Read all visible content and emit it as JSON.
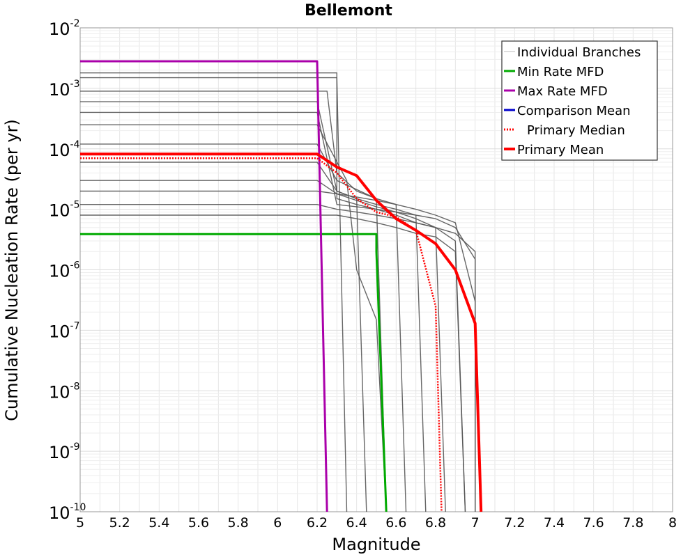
{
  "chart_data": {
    "type": "line",
    "title": "Bellemont",
    "xlabel": "Magnitude",
    "ylabel": "Cumulative Nucleation Rate (per yr)",
    "xlim": [
      5,
      8
    ],
    "ylim": [
      1e-10,
      0.01
    ],
    "yscale": "log",
    "grid": true,
    "legend_position": "top-right",
    "x_ticks": [
      "5",
      "5.2",
      "5.4",
      "5.6",
      "5.8",
      "6",
      "6.2",
      "6.4",
      "6.6",
      "6.8",
      "7",
      "7.2",
      "7.4",
      "7.6",
      "7.8",
      "8"
    ],
    "y_ticks": [
      {
        "base": "10",
        "exp": "-2"
      },
      {
        "base": "10",
        "exp": "-3"
      },
      {
        "base": "10",
        "exp": "-4"
      },
      {
        "base": "10",
        "exp": "-5"
      },
      {
        "base": "10",
        "exp": "-6"
      },
      {
        "base": "10",
        "exp": "-7"
      },
      {
        "base": "10",
        "exp": "-8"
      },
      {
        "base": "10",
        "exp": "-9"
      },
      {
        "base": "10",
        "exp": "-10"
      }
    ],
    "series": [
      {
        "name": "Individual Branches",
        "color": "#555555",
        "style": "thin",
        "note_count_visible": "many",
        "samples": [
          {
            "x": [
              5,
              6.3,
              6.3,
              6.4,
              6.5,
              6.6,
              6.7,
              6.8,
              6.9,
              6.95
            ],
            "y": [
              0.0018,
              0.0018,
              1.5e-05,
              1.2e-05,
              1e-05,
              8e-06,
              6e-06,
              5e-06,
              3e-06,
              1e-10
            ]
          },
          {
            "x": [
              5,
              6.2,
              6.3,
              6.4,
              6.5,
              6.6,
              6.7,
              6.8,
              6.9,
              7.0,
              7.0
            ],
            "y": [
              0.0004,
              0.0004,
              1.2e-05,
              1.1e-05,
              1e-05,
              9e-06,
              8e-06,
              7e-06,
              5e-06,
              1.5e-06,
              1e-10
            ]
          },
          {
            "x": [
              5,
              6.2,
              6.3,
              6.4,
              6.45
            ],
            "y": [
              0.0006,
              0.0006,
              2e-05,
              1.5e-05,
              1e-10
            ]
          },
          {
            "x": [
              5,
              6.2,
              6.3,
              6.5,
              6.55
            ],
            "y": [
              0.00012,
              0.00012,
              3e-05,
              1.5e-05,
              1e-10
            ]
          },
          {
            "x": [
              5,
              6.2,
              6.3,
              6.4,
              6.5,
              6.6,
              6.7,
              6.75
            ],
            "y": [
              6e-05,
              6e-05,
              2e-05,
              1.5e-05,
              1.2e-05,
              1e-05,
              8e-06,
              1e-10
            ]
          },
          {
            "x": [
              5,
              6.2,
              6.3,
              6.4,
              6.5,
              6.6,
              6.7,
              6.8,
              6.85
            ],
            "y": [
              3e-05,
              3e-05,
              1.8e-05,
              1.4e-05,
              1.1e-05,
              9e-06,
              7e-06,
              5e-06,
              1e-10
            ]
          },
          {
            "x": [
              5,
              6.2,
              6.3,
              6.4,
              6.5,
              6.6,
              6.7,
              6.8,
              6.9,
              7.0,
              7.0
            ],
            "y": [
              1.2e-05,
              1.2e-05,
              1e-05,
              9e-06,
              8e-06,
              7e-06,
              6e-06,
              5e-06,
              4e-06,
              2e-06,
              1e-10
            ]
          },
          {
            "x": [
              5,
              6.25,
              6.3,
              6.4,
              6.5,
              6.6,
              6.65
            ],
            "y": [
              0.0009,
              0.0009,
              4e-05,
              2e-05,
              1.5e-05,
              1.2e-05,
              1e-10
            ]
          },
          {
            "x": [
              5,
              6.2,
              6.3,
              6.4,
              6.5,
              6.6,
              6.7,
              6.8,
              6.9,
              7.0,
              7.0
            ],
            "y": [
              2e-05,
              2e-05,
              1.8e-05,
              1.6e-05,
              1.4e-05,
              1.2e-05,
              1e-05,
              8e-06,
              6e-06,
              3e-07,
              1e-10
            ]
          },
          {
            "x": [
              5,
              6.2,
              6.35,
              6.4,
              6.5,
              6.55
            ],
            "y": [
              0.00025,
              0.00025,
              3e-05,
              1e-06,
              1.5e-07,
              1e-10
            ]
          },
          {
            "x": [
              5,
              6.2,
              6.3,
              6.35
            ],
            "y": [
              0.0015,
              0.0015,
              0.0015,
              1e-10
            ]
          },
          {
            "x": [
              5,
              6.2,
              6.3,
              6.4,
              6.5,
              6.6,
              6.7,
              6.8,
              6.9,
              6.95
            ],
            "y": [
              8e-06,
              8e-06,
              8e-06,
              7e-06,
              6e-06,
              5e-06,
              4e-06,
              3.5e-06,
              2e-06,
              1e-10
            ]
          }
        ]
      },
      {
        "name": "Min Rate MFD",
        "color": "#00aa00",
        "x": [
          5,
          6.2,
          6.5,
          6.5,
          6.55
        ],
        "y": [
          3.9e-06,
          3.9e-06,
          3.9e-06,
          2e-06,
          1e-10
        ]
      },
      {
        "name": "Max Rate MFD",
        "color": "#aa00aa",
        "x": [
          5,
          6.2,
          6.2,
          6.25
        ],
        "y": [
          0.0028,
          0.0028,
          0.0028,
          1e-10
        ]
      },
      {
        "name": "Comparison Mean",
        "color": "#0000cc",
        "x": [],
        "y": []
      },
      {
        "name": "Primary Median",
        "color": "#ff0000",
        "style": "dotted",
        "x": [
          5,
          6.2,
          6.3,
          6.4,
          6.5,
          6.6,
          6.7,
          6.8,
          6.83
        ],
        "y": [
          7e-05,
          7e-05,
          4e-05,
          1.5e-05,
          9e-06,
          7.5e-06,
          4.5e-06,
          2.5e-07,
          1e-10
        ]
      },
      {
        "name": "Primary Mean",
        "color": "#ff0000",
        "style": "thick",
        "x": [
          5,
          6.2,
          6.3,
          6.4,
          6.5,
          6.6,
          6.7,
          6.8,
          6.9,
          7.0,
          7.03
        ],
        "y": [
          8.2e-05,
          8.2e-05,
          5e-05,
          3.6e-05,
          1.4e-05,
          7e-06,
          4.5e-06,
          2.7e-06,
          1e-06,
          1.3e-07,
          1e-10
        ]
      }
    ]
  }
}
